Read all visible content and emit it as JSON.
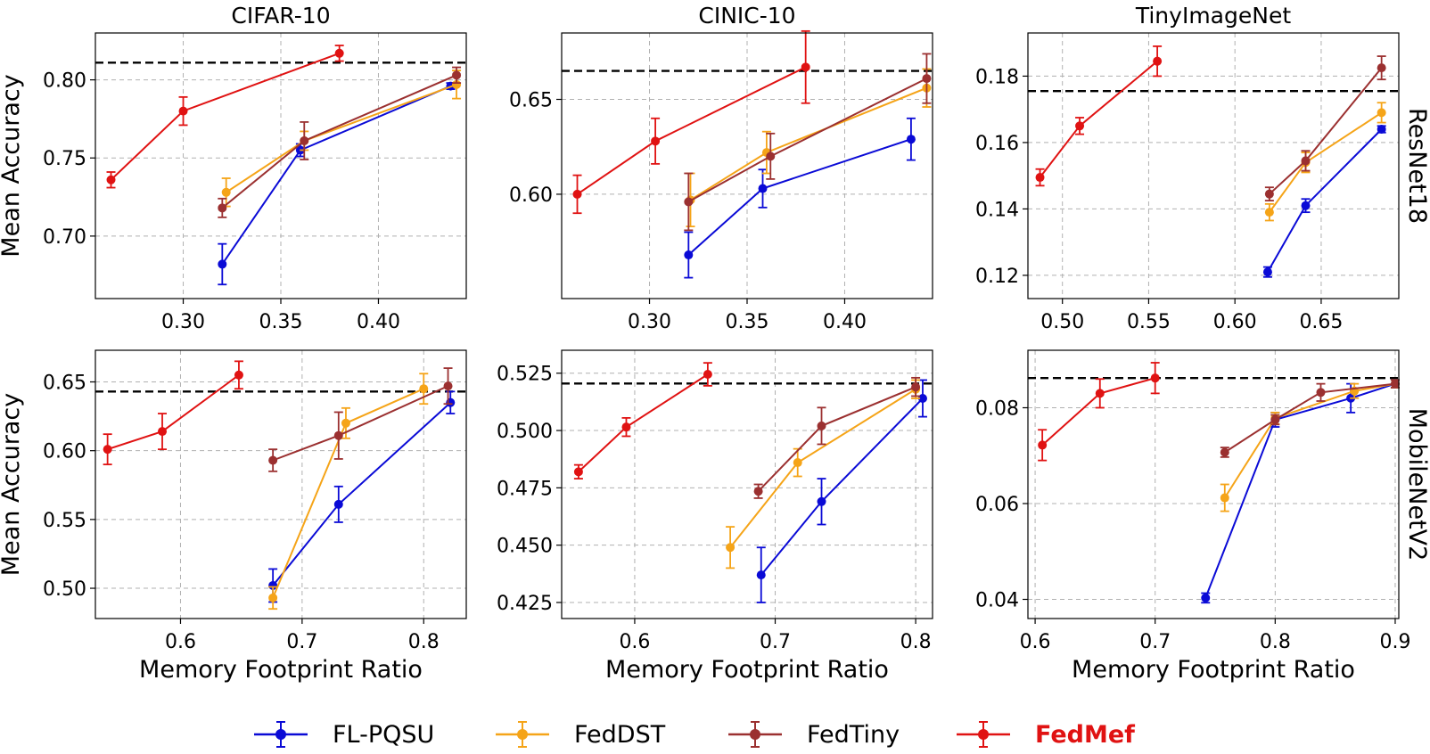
{
  "series_colors": {
    "FL-PQSU": "#0a0ad6",
    "FedDST": "#f5a418",
    "FedTiny": "#9b3030",
    "FedMef": "#e01212"
  },
  "legend": {
    "placement": "bottom-center",
    "entries": [
      "FL-PQSU",
      "FedDST",
      "FedTiny",
      "FedMef"
    ],
    "highlight": "FedMef"
  },
  "shared_xlabel": "Memory Footprint Ratio",
  "shared_ylabel": "Mean Accuracy",
  "columns": [
    "CIFAR-10",
    "CINIC-10",
    "TinyImageNet"
  ],
  "rows": [
    "ResNet18",
    "MobileNetV2"
  ],
  "chart_data": [
    {
      "type": "line",
      "title": "CIFAR-10",
      "row_label": "ResNet18",
      "xlabel": "",
      "ylabel": "Mean Accuracy",
      "xlim": [
        0.255,
        0.445
      ],
      "ylim": [
        0.66,
        0.83
      ],
      "xticks": [
        0.3,
        0.35,
        0.4
      ],
      "xtick_labels": [
        "0.30",
        "0.35",
        "0.40"
      ],
      "yticks": [
        0.7,
        0.75,
        0.8
      ],
      "ytick_labels": [
        "0.70",
        "0.75",
        "0.80"
      ],
      "reference_line": 0.811,
      "grid": true,
      "series": [
        {
          "name": "FL-PQSU",
          "x": [
            0.32,
            0.36,
            0.437
          ],
          "y": [
            0.682,
            0.755,
            0.796
          ],
          "err": [
            0.013,
            0.004,
            0.002
          ]
        },
        {
          "name": "FedDST",
          "x": [
            0.322,
            0.362,
            0.44
          ],
          "y": [
            0.728,
            0.761,
            0.797
          ],
          "err": [
            0.009,
            0.006,
            0.009
          ]
        },
        {
          "name": "FedTiny",
          "x": [
            0.32,
            0.362,
            0.44
          ],
          "y": [
            0.718,
            0.761,
            0.803
          ],
          "err": [
            0.006,
            0.012,
            0.005
          ]
        },
        {
          "name": "FedMef",
          "x": [
            0.263,
            0.3,
            0.38
          ],
          "y": [
            0.736,
            0.78,
            0.817
          ],
          "err": [
            0.005,
            0.009,
            0.005
          ]
        }
      ]
    },
    {
      "type": "line",
      "title": "CINIC-10",
      "row_label": "ResNet18",
      "xlabel": "",
      "ylabel": "",
      "xlim": [
        0.255,
        0.445
      ],
      "ylim": [
        0.545,
        0.685
      ],
      "xticks": [
        0.3,
        0.35,
        0.4
      ],
      "xtick_labels": [
        "0.30",
        "0.35",
        "0.40"
      ],
      "yticks": [
        0.6,
        0.65
      ],
      "ytick_labels": [
        "0.60",
        "0.65"
      ],
      "reference_line": 0.665,
      "grid": true,
      "series": [
        {
          "name": "FL-PQSU",
          "x": [
            0.32,
            0.358,
            0.434
          ],
          "y": [
            0.568,
            0.603,
            0.629
          ],
          "err": [
            0.012,
            0.01,
            0.011
          ]
        },
        {
          "name": "FedDST",
          "x": [
            0.321,
            0.36,
            0.442
          ],
          "y": [
            0.597,
            0.622,
            0.656
          ],
          "err": [
            0.014,
            0.011,
            0.01
          ]
        },
        {
          "name": "FedTiny",
          "x": [
            0.32,
            0.362,
            0.442
          ],
          "y": [
            0.596,
            0.62,
            0.661
          ],
          "err": [
            0.015,
            0.012,
            0.013
          ]
        },
        {
          "name": "FedMef",
          "x": [
            0.263,
            0.303,
            0.38
          ],
          "y": [
            0.6,
            0.628,
            0.667
          ],
          "err": [
            0.01,
            0.012,
            0.019
          ]
        }
      ]
    },
    {
      "type": "line",
      "title": "TinyImageNet",
      "row_label": "ResNet18",
      "xlabel": "",
      "ylabel": "",
      "xlim": [
        0.48,
        0.695
      ],
      "ylim": [
        0.113,
        0.193
      ],
      "xticks": [
        0.5,
        0.55,
        0.6,
        0.65
      ],
      "xtick_labels": [
        "0.50",
        "0.55",
        "0.60",
        "0.65"
      ],
      "yticks": [
        0.12,
        0.14,
        0.16,
        0.18
      ],
      "ytick_labels": [
        "0.12",
        "0.14",
        "0.16",
        "0.18"
      ],
      "reference_line": 0.1755,
      "grid": true,
      "series": [
        {
          "name": "FL-PQSU",
          "x": [
            0.619,
            0.641,
            0.685
          ],
          "y": [
            0.121,
            0.141,
            0.164
          ],
          "err": [
            0.0015,
            0.002,
            0.001
          ]
        },
        {
          "name": "FedDST",
          "x": [
            0.62,
            0.641,
            0.685
          ],
          "y": [
            0.139,
            0.154,
            0.169
          ],
          "err": [
            0.0025,
            0.003,
            0.003
          ]
        },
        {
          "name": "FedTiny",
          "x": [
            0.62,
            0.641,
            0.685
          ],
          "y": [
            0.1445,
            0.1545,
            0.1825
          ],
          "err": [
            0.002,
            0.003,
            0.0035
          ]
        },
        {
          "name": "FedMef",
          "x": [
            0.487,
            0.51,
            0.555
          ],
          "y": [
            0.1495,
            0.165,
            0.1845
          ],
          "err": [
            0.0025,
            0.0025,
            0.0045
          ]
        }
      ]
    },
    {
      "type": "line",
      "title": "",
      "row_label": "MobileNetV2",
      "xlabel": "Memory Footprint Ratio",
      "ylabel": "Mean Accuracy",
      "xlim": [
        0.53,
        0.835
      ],
      "ylim": [
        0.478,
        0.673
      ],
      "xticks": [
        0.6,
        0.7,
        0.8
      ],
      "xtick_labels": [
        "0.6",
        "0.7",
        "0.8"
      ],
      "yticks": [
        0.5,
        0.55,
        0.6,
        0.65
      ],
      "ytick_labels": [
        "0.50",
        "0.55",
        "0.60",
        "0.65"
      ],
      "reference_line": 0.643,
      "grid": true,
      "series": [
        {
          "name": "FL-PQSU",
          "x": [
            0.676,
            0.73,
            0.822
          ],
          "y": [
            0.502,
            0.561,
            0.635
          ],
          "err": [
            0.012,
            0.013,
            0.008
          ]
        },
        {
          "name": "FedDST",
          "x": [
            0.676,
            0.736,
            0.8
          ],
          "y": [
            0.493,
            0.62,
            0.645
          ],
          "err": [
            0.008,
            0.011,
            0.011
          ]
        },
        {
          "name": "FedTiny",
          "x": [
            0.676,
            0.73,
            0.82
          ],
          "y": [
            0.593,
            0.611,
            0.647
          ],
          "err": [
            0.008,
            0.017,
            0.013
          ]
        },
        {
          "name": "FedMef",
          "x": [
            0.54,
            0.585,
            0.648
          ],
          "y": [
            0.601,
            0.614,
            0.655
          ],
          "err": [
            0.011,
            0.013,
            0.01
          ]
        }
      ]
    },
    {
      "type": "line",
      "title": "",
      "row_label": "MobileNetV2",
      "xlabel": "Memory Footprint Ratio",
      "ylabel": "",
      "xlim": [
        0.548,
        0.812
      ],
      "ylim": [
        0.418,
        0.535
      ],
      "xticks": [
        0.6,
        0.7,
        0.8
      ],
      "xtick_labels": [
        "0.6",
        "0.7",
        "0.8"
      ],
      "yticks": [
        0.425,
        0.45,
        0.475,
        0.5,
        0.525
      ],
      "ytick_labels": [
        "0.425",
        "0.450",
        "0.475",
        "0.500",
        "0.525"
      ],
      "reference_line": 0.5205,
      "grid": true,
      "series": [
        {
          "name": "FL-PQSU",
          "x": [
            0.69,
            0.733,
            0.805
          ],
          "y": [
            0.437,
            0.469,
            0.514
          ],
          "err": [
            0.012,
            0.01,
            0.008
          ]
        },
        {
          "name": "FedDST",
          "x": [
            0.668,
            0.716,
            0.8
          ],
          "y": [
            0.449,
            0.486,
            0.518
          ],
          "err": [
            0.009,
            0.006,
            0.004
          ]
        },
        {
          "name": "FedTiny",
          "x": [
            0.688,
            0.733,
            0.8
          ],
          "y": [
            0.4735,
            0.502,
            0.519
          ],
          "err": [
            0.003,
            0.008,
            0.004
          ]
        },
        {
          "name": "FedMef",
          "x": [
            0.56,
            0.594,
            0.652
          ],
          "y": [
            0.482,
            0.5015,
            0.5245
          ],
          "err": [
            0.003,
            0.004,
            0.005
          ]
        }
      ]
    },
    {
      "type": "line",
      "title": "",
      "row_label": "MobileNetV2",
      "xlabel": "Memory Footprint Ratio",
      "ylabel": "",
      "xlim": [
        0.594,
        0.903
      ],
      "ylim": [
        0.036,
        0.092
      ],
      "xticks": [
        0.6,
        0.7,
        0.8,
        0.9
      ],
      "xtick_labels": [
        "0.6",
        "0.7",
        "0.8",
        "0.9"
      ],
      "yticks": [
        0.04,
        0.06,
        0.08
      ],
      "ytick_labels": [
        "0.04",
        "0.06",
        "0.08"
      ],
      "reference_line": 0.0862,
      "grid": true,
      "series": [
        {
          "name": "FL-PQSU",
          "x": [
            0.742,
            0.8,
            0.863,
            0.9
          ],
          "y": [
            0.0403,
            0.0775,
            0.082,
            0.085
          ],
          "err": [
            0.001,
            0.0015,
            0.003,
            0.0008
          ]
        },
        {
          "name": "FedDST",
          "x": [
            0.758,
            0.8,
            0.866,
            0.9
          ],
          "y": [
            0.0612,
            0.0778,
            0.0835,
            0.085
          ],
          "err": [
            0.0028,
            0.0012,
            0.0015,
            0.0008
          ]
        },
        {
          "name": "FedTiny",
          "x": [
            0.758,
            0.8,
            0.838,
            0.9
          ],
          "y": [
            0.0707,
            0.0775,
            0.0832,
            0.085
          ],
          "err": [
            0.001,
            0.001,
            0.0018,
            0.0008
          ]
        },
        {
          "name": "FedMef",
          "x": [
            0.606,
            0.654,
            0.7
          ],
          "y": [
            0.0722,
            0.083,
            0.0862
          ],
          "err": [
            0.0032,
            0.003,
            0.0032
          ]
        }
      ]
    }
  ]
}
